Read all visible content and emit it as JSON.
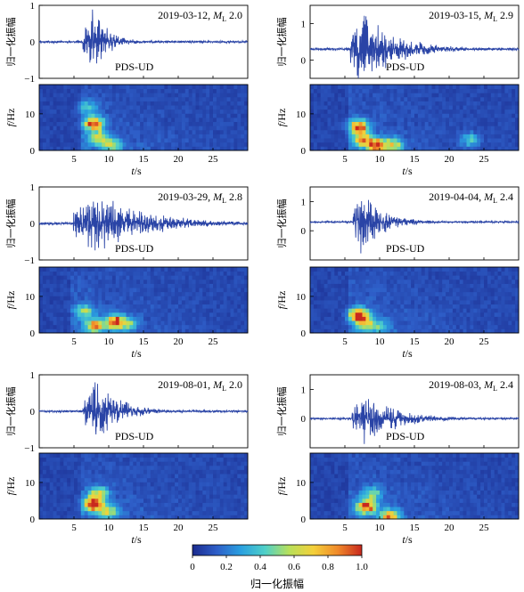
{
  "chart_data": [
    {
      "type": "line",
      "id": "p1",
      "title": "2019-03-12, ",
      "magnitude_symbol": "M",
      "magnitude_sub": "L",
      "magnitude": "2.0",
      "station": "PDS-UD",
      "ylabel": "归一化振幅",
      "y_ticks": [
        "1",
        "0",
        "−1"
      ],
      "ylim": [
        -1,
        1
      ],
      "onset_s": 6.3,
      "seed": 11,
      "peak_s": 7.8,
      "decay": 0.45,
      "amp": 0.95,
      "spectrogram": {
        "ylabel": "f/Hz",
        "y_ticks": [
          "10",
          "0"
        ],
        "xlabel": "t/s",
        "x_ticks": [
          "5",
          "10",
          "15",
          "20",
          "25"
        ],
        "xlim": [
          0,
          30
        ],
        "ylim": [
          0,
          18
        ],
        "hotspots": [
          [
            7.8,
            7.5,
            1.0
          ],
          [
            8.5,
            3.5,
            0.55
          ],
          [
            10.5,
            1.5,
            0.45
          ],
          [
            7.0,
            12.0,
            0.3
          ]
        ]
      }
    },
    {
      "type": "line",
      "id": "p2",
      "title": "2019-03-15, ",
      "magnitude_symbol": "M",
      "magnitude_sub": "L",
      "magnitude": "2.9",
      "station": "PDS-UD",
      "ylabel": "归一化振幅",
      "y_ticks": [
        "1",
        "0"
      ],
      "ylim": [
        -0.5,
        1.5
      ],
      "baseline": 0.3,
      "onset_s": 5.8,
      "seed": 23,
      "peak_s": 7.0,
      "decay": 0.2,
      "amp": 1.15,
      "spectrogram": {
        "ylabel": "f/Hz",
        "y_ticks": [
          "10",
          "0"
        ],
        "xlabel": "t/s",
        "x_ticks": [
          "5",
          "10",
          "15",
          "20",
          "25"
        ],
        "xlim": [
          0,
          30
        ],
        "ylim": [
          0,
          18
        ],
        "hotspots": [
          [
            7.0,
            6.5,
            1.0
          ],
          [
            9.5,
            1.5,
            0.9
          ],
          [
            12.0,
            1.5,
            0.6
          ],
          [
            7.5,
            3.0,
            0.7
          ],
          [
            23.0,
            3.0,
            0.35
          ]
        ]
      }
    },
    {
      "type": "line",
      "id": "p3",
      "title": "2019-03-29, ",
      "magnitude_symbol": "M",
      "magnitude_sub": "L",
      "magnitude": "2.8",
      "station": "PDS-UD",
      "ylabel": "归一化振幅",
      "y_ticks": [
        "1",
        "0",
        "−1"
      ],
      "ylim": [
        -1,
        1
      ],
      "onset_s": 4.9,
      "seed": 37,
      "peak_s": 8.0,
      "decay": 0.14,
      "amp": 0.95,
      "spectrogram": {
        "ylabel": "f/Hz",
        "y_ticks": [
          "10",
          "0"
        ],
        "xlabel": "t/s",
        "x_ticks": [
          "5",
          "10",
          "15",
          "20",
          "25"
        ],
        "xlim": [
          0,
          30
        ],
        "ylim": [
          0,
          18
        ],
        "hotspots": [
          [
            11.0,
            3.0,
            1.0
          ],
          [
            8.0,
            2.0,
            0.75
          ],
          [
            6.5,
            6.0,
            0.4
          ],
          [
            13.0,
            2.5,
            0.35
          ]
        ]
      }
    },
    {
      "type": "line",
      "id": "p4",
      "title": "2019-04-04, ",
      "magnitude_symbol": "M",
      "magnitude_sub": "L",
      "magnitude": "2.4",
      "station": "PDS-UD",
      "ylabel": "归一化振幅",
      "y_ticks": [
        "1",
        "0"
      ],
      "ylim": [
        -1,
        1.5
      ],
      "baseline": 0.3,
      "onset_s": 6.2,
      "seed": 53,
      "peak_s": 7.3,
      "decay": 0.3,
      "amp": 1.1,
      "spectrogram": {
        "ylabel": "f/Hz",
        "y_ticks": [
          "10",
          "0"
        ],
        "xlabel": "t/s",
        "x_ticks": [
          "5",
          "10",
          "15",
          "20",
          "25"
        ],
        "xlim": [
          0,
          30
        ],
        "ylim": [
          0,
          18
        ],
        "hotspots": [
          [
            7.0,
            5.0,
            1.0
          ],
          [
            8.0,
            2.5,
            0.5
          ],
          [
            10.0,
            2.0,
            0.3
          ]
        ]
      }
    },
    {
      "type": "line",
      "id": "p5",
      "title": "2019-08-01, ",
      "magnitude_symbol": "M",
      "magnitude_sub": "L",
      "magnitude": "2.0",
      "station": "PDS-UD",
      "ylabel": "归一化振幅",
      "y_ticks": [
        "1",
        "0",
        "−1"
      ],
      "ylim": [
        -1,
        1
      ],
      "onset_s": 6.3,
      "seed": 71,
      "peak_s": 8.2,
      "decay": 0.3,
      "amp": 0.95,
      "spectrogram": {
        "ylabel": "f/Hz",
        "y_ticks": [
          "10",
          "0"
        ],
        "xlabel": "t/s",
        "x_ticks": [
          "5",
          "10",
          "15",
          "20",
          "25"
        ],
        "xlim": [
          0,
          30
        ],
        "ylim": [
          0,
          18
        ],
        "hotspots": [
          [
            7.8,
            4.0,
            1.0
          ],
          [
            8.5,
            7.0,
            0.6
          ],
          [
            10.0,
            2.0,
            0.5
          ]
        ]
      }
    },
    {
      "type": "line",
      "id": "p6",
      "title": "2019-08-03, ",
      "magnitude_symbol": "M",
      "magnitude_sub": "L",
      "magnitude": "2.4",
      "station": "PDS-UD",
      "ylabel": "归一化振幅",
      "y_ticks": [
        "1",
        "0"
      ],
      "ylim": [
        -1,
        1.5
      ],
      "baseline": 0.0,
      "onset_s": 6.0,
      "seed": 89,
      "peak_s": 8.0,
      "decay": 0.22,
      "amp": 1.0,
      "spectrogram": {
        "ylabel": "f/Hz",
        "y_ticks": [
          "10",
          "0"
        ],
        "xlabel": "t/s",
        "x_ticks": [
          "5",
          "10",
          "15",
          "20",
          "25"
        ],
        "xlim": [
          0,
          30
        ],
        "ylim": [
          0,
          18
        ],
        "hotspots": [
          [
            8.0,
            3.5,
            1.0
          ],
          [
            11.5,
            0.8,
            0.8
          ],
          [
            9.0,
            7.0,
            0.4
          ]
        ]
      }
    }
  ],
  "colorbar": {
    "ticks": [
      "0",
      "0.2",
      "0.4",
      "0.6",
      "0.8",
      "1.0"
    ],
    "label": "归一化振幅",
    "colors": [
      "#1b2b8f",
      "#2e5ec8",
      "#2aa0e0",
      "#4fd0c8",
      "#b8e05a",
      "#f4d03a",
      "#f08a2a",
      "#c8281e"
    ]
  },
  "waveform_color": "#2a44a6"
}
